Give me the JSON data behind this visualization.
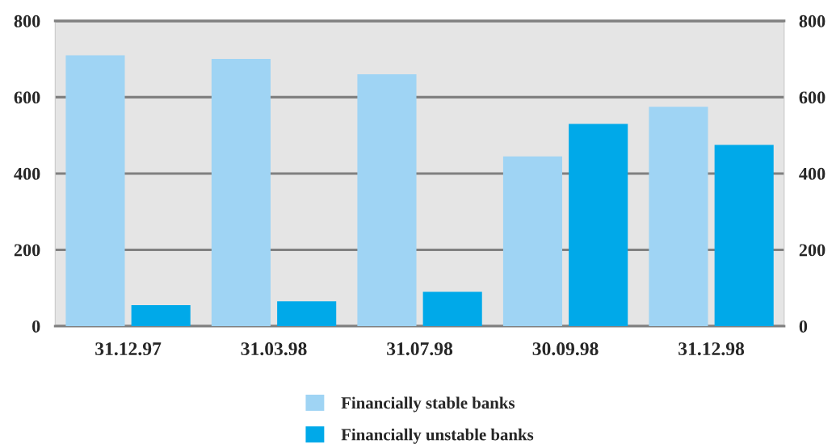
{
  "chart_data": {
    "type": "bar",
    "categories": [
      "31.12.97",
      "31.03.98",
      "31.07.98",
      "30.09.98",
      "31.12.98"
    ],
    "series": [
      {
        "name": "Financially stable banks",
        "color": "#9fd4f4",
        "values": [
          710,
          700,
          660,
          445,
          575
        ]
      },
      {
        "name": "Financially unstable banks",
        "color": "#00a9e9",
        "values": [
          55,
          65,
          90,
          530,
          475
        ]
      }
    ],
    "ylim": [
      0,
      800
    ],
    "yticks": [
      0,
      200,
      400,
      600,
      800
    ],
    "y2lim": [
      0,
      800
    ],
    "y2ticks": [
      0,
      200,
      400,
      600,
      800
    ],
    "grid": "y",
    "legend": "bottom"
  }
}
